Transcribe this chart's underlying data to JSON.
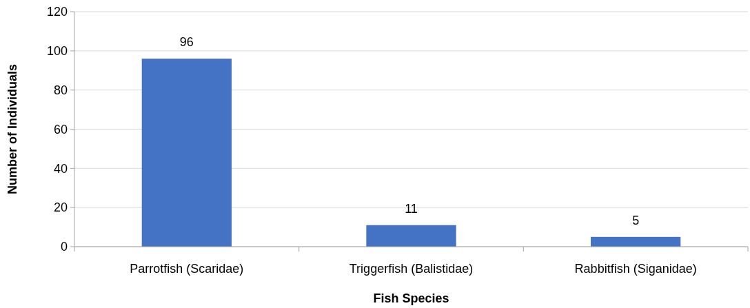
{
  "chart_data": {
    "type": "bar",
    "xlabel": "Fish Species",
    "ylabel": "Number of Individuals",
    "categories": [
      "Parrotfish (Scaridae)",
      "Triggerfish (Balistidae)",
      "Rabbitfish (Siganidae)"
    ],
    "values": [
      96,
      11,
      5
    ],
    "color": "#4472c4",
    "ylim": [
      0,
      120
    ],
    "yticks": [
      0,
      20,
      40,
      60,
      80,
      100,
      120
    ],
    "grid": "y",
    "data_labels": true
  }
}
